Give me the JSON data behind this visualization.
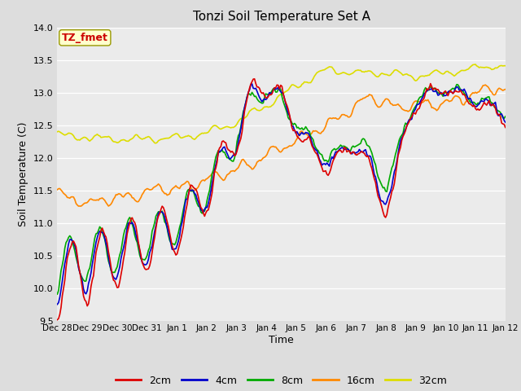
{
  "title": "Tonzi Soil Temperature Set A",
  "xlabel": "Time",
  "ylabel": "Soil Temperature (C)",
  "annotation": "TZ_fmet",
  "annotation_bg": "#ffffcc",
  "annotation_border": "#999900",
  "annotation_text_color": "#cc0000",
  "ylim": [
    9.5,
    14.0
  ],
  "series": {
    "2cm": {
      "color": "#dd0000",
      "lw": 1.2
    },
    "4cm": {
      "color": "#0000cc",
      "lw": 1.2
    },
    "8cm": {
      "color": "#00aa00",
      "lw": 1.2
    },
    "16cm": {
      "color": "#ff8800",
      "lw": 1.2
    },
    "32cm": {
      "color": "#dddd00",
      "lw": 1.2
    }
  },
  "xtick_labels": [
    "Dec 28",
    "Dec 29",
    "Dec 30",
    "Dec 31",
    "Jan 1",
    "Jan 2",
    "Jan 3",
    "Jan 4",
    "Jan 5",
    "Jan 6",
    "Jan 7",
    "Jan 8",
    "Jan 9",
    "Jan 10",
    "Jan 11",
    "Jan 12"
  ],
  "ytick_labels": [
    "9.5",
    "10.0",
    "10.5",
    "11.0",
    "11.5",
    "12.0",
    "12.5",
    "13.0",
    "13.5",
    "14.0"
  ],
  "figsize": [
    6.4,
    4.8
  ],
  "dpi": 100
}
